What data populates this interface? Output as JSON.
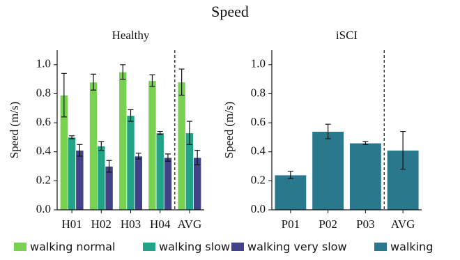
{
  "title": "Speed",
  "chart_data": [
    {
      "type": "bar",
      "title": "Healthy",
      "ylabel": "Speed (m/s)",
      "categories": [
        "H01",
        "H02",
        "H03",
        "H04",
        "AVG"
      ],
      "series": [
        {
          "name": "walking normal",
          "color": "#79d151",
          "values": [
            0.79,
            0.88,
            0.95,
            0.89,
            0.88
          ],
          "errors": [
            0.15,
            0.055,
            0.05,
            0.04,
            0.09
          ]
        },
        {
          "name": "walking slow",
          "color": "#22a387",
          "values": [
            0.5,
            0.44,
            0.65,
            0.53,
            0.53
          ],
          "errors": [
            0.01,
            0.03,
            0.04,
            0.01,
            0.08
          ]
        },
        {
          "name": "walking very slow",
          "color": "#414287",
          "values": [
            0.41,
            0.3,
            0.37,
            0.36,
            0.36
          ],
          "errors": [
            0.04,
            0.04,
            0.02,
            0.025,
            0.05
          ]
        }
      ],
      "ylim": [
        0,
        1.1
      ],
      "yticks": [
        {
          "value": 0,
          "label": "0.0"
        },
        0.2,
        0.4,
        0.6,
        0.8,
        {
          "value": 1,
          "label": "1.0"
        }
      ]
    },
    {
      "type": "bar",
      "title": "iSCI",
      "ylabel": "Speed (m/s)",
      "categories": [
        "P01",
        "P02",
        "P03",
        "AVG"
      ],
      "series": [
        {
          "name": "walking",
          "color": "#2a788e",
          "values": [
            0.24,
            0.54,
            0.46,
            0.41
          ],
          "errors": [
            0.025,
            0.05,
            0.01,
            0.13
          ]
        }
      ],
      "ylim": [
        0,
        1.1
      ],
      "yticks": [
        {
          "value": 0,
          "label": "0.0"
        },
        0.2,
        0.4,
        0.6,
        0.8,
        {
          "value": 1,
          "label": "1.0"
        }
      ]
    }
  ]
}
